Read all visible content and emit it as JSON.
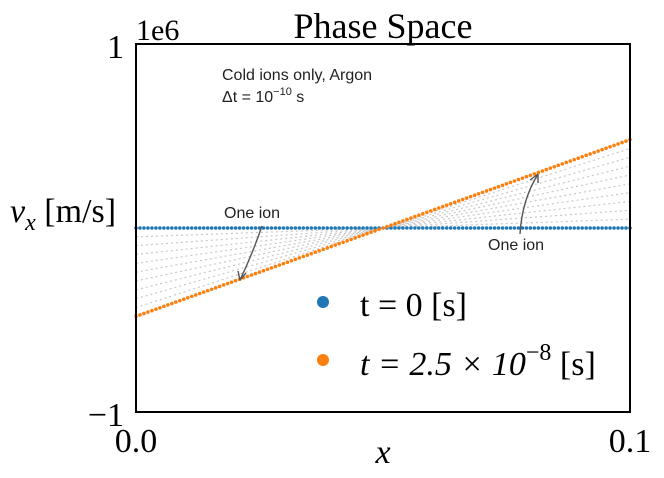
{
  "chart_data": {
    "type": "scatter",
    "title": "Phase Space",
    "xlabel": "x",
    "ylabel": "v_x [m/s]",
    "ylabel_main": "v",
    "ylabel_sub": "x",
    "ylabel_unit": " [m/s]",
    "y_offset_label": "1e6",
    "xlim": [
      0.0,
      0.1
    ],
    "ylim": [
      -1,
      1
    ],
    "x_tick_labels": [
      "0.0",
      "0.1"
    ],
    "y_tick_labels": [
      "1",
      "−1"
    ],
    "grid": false,
    "legend_position": "lower-right",
    "series": [
      {
        "name": "t = 0 [s]",
        "color": "#1f77b4",
        "x_start": 0.0,
        "x_end": 0.1,
        "y_start": 0.0,
        "y_end": 0.0,
        "points": 125
      },
      {
        "name": "t = 2.5 × 10^-8 [s]",
        "name_prefix": "t = 2.5 × 10",
        "name_exp": "−8",
        "name_suffix": " [s]",
        "color": "#ff7f0e",
        "x_start": 0.0,
        "x_end": 0.1,
        "y_start": -0.48,
        "y_end": 0.48,
        "points": 125
      }
    ],
    "annotations": {
      "line1": "Cold ions only, Argon",
      "line2_prefix": "Δt = 10",
      "line2_exp": "−10",
      "line2_suffix": " s",
      "one_ion_left": "One ion",
      "one_ion_right": "One ion"
    }
  }
}
